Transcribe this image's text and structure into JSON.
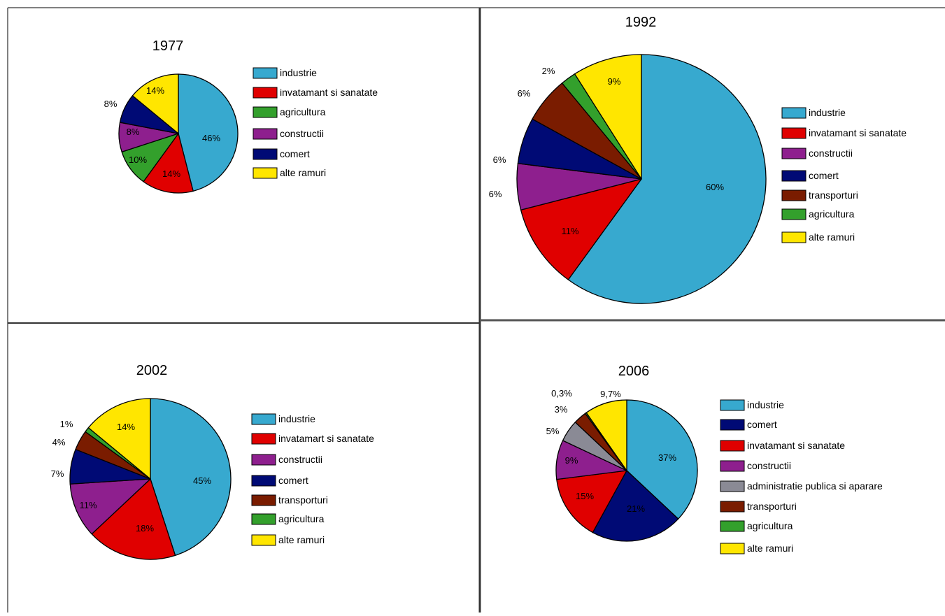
{
  "chart_data": [
    {
      "type": "pie",
      "title": "1977",
      "legend": [
        "industrie",
        "invatamant si sanatate",
        "agricultura",
        "constructii",
        "comert",
        "alte ramuri"
      ],
      "colors": [
        "#37a9cf",
        "#e00000",
        "#33a02c",
        "#8e1f8e",
        "#000a75",
        "#ffe600"
      ],
      "values": [
        46,
        14,
        10,
        8,
        8,
        14
      ],
      "labels": [
        "46%",
        "14%",
        "10%",
        "8%",
        "8%",
        "14%"
      ],
      "legend_position": "right"
    },
    {
      "type": "pie",
      "title": "1992",
      "legend": [
        "industrie",
        "invatamant si sanatate",
        "constructii",
        "comert",
        "transporturi",
        "agricultura",
        "alte ramuri"
      ],
      "colors": [
        "#37a9cf",
        "#e00000",
        "#8e1f8e",
        "#000a75",
        "#7a1c00",
        "#33a02c",
        "#ffe600"
      ],
      "values": [
        60,
        11,
        6,
        6,
        6,
        2,
        9
      ],
      "labels": [
        "60%",
        "11%",
        "6%",
        "6%",
        "6%",
        "2%",
        "9%"
      ],
      "legend_position": "right"
    },
    {
      "type": "pie",
      "title": "2002",
      "legend": [
        "industrie",
        "invatamart si sanatate",
        "constructii",
        "comert",
        "transporturi",
        "agricultura",
        "alte ramuri"
      ],
      "colors": [
        "#37a9cf",
        "#e00000",
        "#8e1f8e",
        "#000a75",
        "#7a1c00",
        "#33a02c",
        "#ffe600"
      ],
      "values": [
        45,
        18,
        11,
        7,
        4,
        1,
        14
      ],
      "labels": [
        "45%",
        "18%",
        "11%",
        "7%",
        "4%",
        "1%",
        "14%"
      ],
      "legend_position": "right"
    },
    {
      "type": "pie",
      "title": "2006",
      "legend": [
        "industrie",
        "comert",
        "invatamant si sanatate",
        "constructii",
        "administratie publica si aparare",
        "transporturi",
        "agricultura",
        "alte ramuri"
      ],
      "colors": [
        "#37a9cf",
        "#000a75",
        "#e00000",
        "#8e1f8e",
        "#8a8a95",
        "#7a1c00",
        "#33a02c",
        "#ffe600"
      ],
      "values": [
        37,
        21,
        15,
        9,
        5,
        3,
        0.3,
        9.7
      ],
      "labels": [
        "37%",
        "21%",
        "15%",
        "9%",
        "5%",
        "3%",
        "0,3%",
        "9,7%"
      ],
      "legend_position": "right"
    }
  ]
}
